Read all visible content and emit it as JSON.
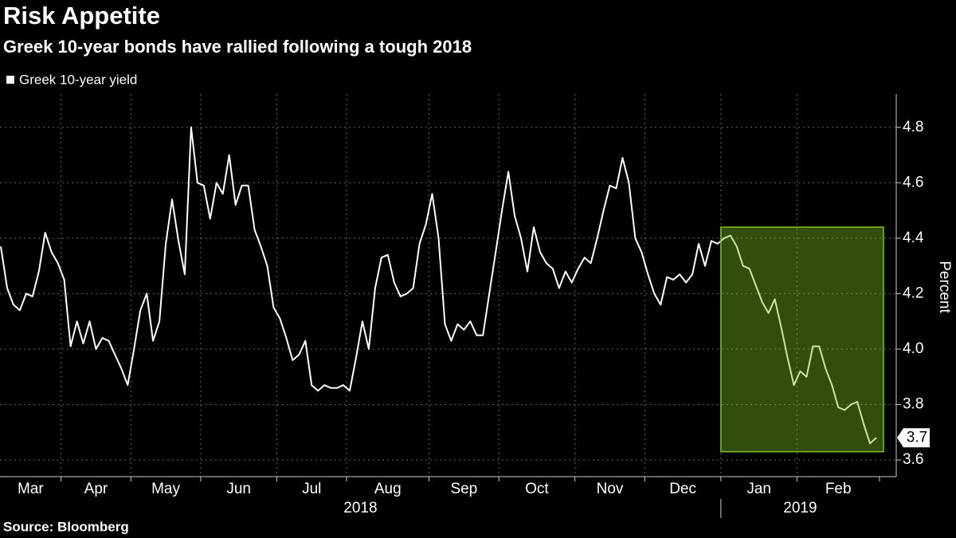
{
  "chart_data": {
    "type": "line",
    "title": "Risk Appetite",
    "subtitle": "Greek 10-year bonds have rallied following a tough 2018",
    "source": "Source: Bloomberg",
    "y_label": "Percent",
    "legend": "top-left",
    "grid": true,
    "ylim": [
      3.54,
      4.92
    ],
    "yticks": [
      3.6,
      3.8,
      {
        "value": 4,
        "label": "4.0"
      },
      4.2,
      4.4,
      4.6,
      4.8
    ],
    "categories": [
      "Mar",
      null,
      null,
      null,
      null,
      null,
      null,
      null,
      null,
      null,
      "Apr",
      null,
      null,
      null,
      null,
      null,
      null,
      null,
      null,
      null,
      null,
      "May",
      null,
      null,
      null,
      null,
      null,
      null,
      null,
      null,
      null,
      null,
      "Jun",
      null,
      null,
      null,
      null,
      null,
      null,
      null,
      null,
      null,
      null,
      null,
      "Jul",
      null,
      null,
      null,
      null,
      null,
      null,
      null,
      null,
      null,
      null,
      "Aug",
      null,
      null,
      null,
      null,
      null,
      null,
      null,
      null,
      null,
      null,
      null,
      null,
      "Sep",
      null,
      null,
      null,
      null,
      null,
      null,
      null,
      null,
      null,
      null,
      "Oct",
      null,
      null,
      null,
      null,
      null,
      null,
      null,
      null,
      null,
      null,
      null,
      "Nov",
      null,
      null,
      null,
      null,
      null,
      null,
      null,
      null,
      null,
      null,
      "Dec",
      null,
      null,
      null,
      null,
      null,
      null,
      null,
      null,
      null,
      null,
      null,
      "Jan",
      null,
      null,
      null,
      null,
      null,
      null,
      null,
      null,
      null,
      null,
      null,
      "Feb",
      null,
      null,
      null,
      null,
      null,
      null,
      null,
      null,
      null,
      null,
      null,
      null
    ],
    "year_labels": [
      {
        "label": "2018",
        "first": "Mar"
      },
      {
        "label": "2019",
        "first": "Jan"
      }
    ],
    "series": [
      {
        "name": "Greek 10-year yield",
        "color": "#ffffff",
        "values": [
          4.37,
          4.22,
          4.16,
          4.14,
          4.2,
          4.19,
          4.28,
          4.42,
          4.35,
          4.31,
          4.25,
          4.01,
          4.1,
          4.02,
          4.1,
          4.0,
          4.04,
          4.03,
          3.98,
          3.93,
          3.87,
          4.0,
          4.14,
          4.2,
          4.03,
          4.1,
          4.38,
          4.54,
          4.39,
          4.27,
          4.8,
          4.6,
          4.59,
          4.47,
          4.6,
          4.56,
          4.7,
          4.52,
          4.59,
          4.59,
          4.43,
          4.37,
          4.3,
          4.15,
          4.11,
          4.04,
          3.96,
          3.98,
          4.03,
          3.87,
          3.85,
          3.87,
          3.86,
          3.86,
          3.87,
          3.85,
          3.97,
          4.1,
          4.0,
          4.22,
          4.33,
          4.34,
          4.24,
          4.19,
          4.2,
          4.22,
          4.38,
          4.45,
          4.56,
          4.4,
          4.09,
          4.03,
          4.09,
          4.07,
          4.1,
          4.05,
          4.05,
          4.2,
          4.35,
          4.5,
          4.64,
          4.48,
          4.4,
          4.28,
          4.44,
          4.35,
          4.31,
          4.29,
          4.22,
          4.28,
          4.24,
          4.29,
          4.33,
          4.31,
          4.4,
          4.5,
          4.59,
          4.58,
          4.69,
          4.6,
          4.4,
          4.35,
          4.27,
          4.2,
          4.16,
          4.26,
          4.25,
          4.27,
          4.24,
          4.27,
          4.38,
          4.3,
          4.39,
          4.38,
          4.4,
          4.41,
          4.37,
          4.3,
          4.29,
          4.23,
          4.17,
          4.13,
          4.18,
          4.08,
          3.97,
          3.87,
          3.92,
          3.9,
          4.01,
          4.01,
          3.93,
          3.87,
          3.79,
          3.78,
          3.8,
          3.81,
          3.73,
          3.66,
          3.68
        ]
      }
    ],
    "end_label": "3.7",
    "highlight": {
      "from": "Jan",
      "ylim": [
        3.63,
        4.44
      ],
      "color": "#7fc31c"
    }
  }
}
